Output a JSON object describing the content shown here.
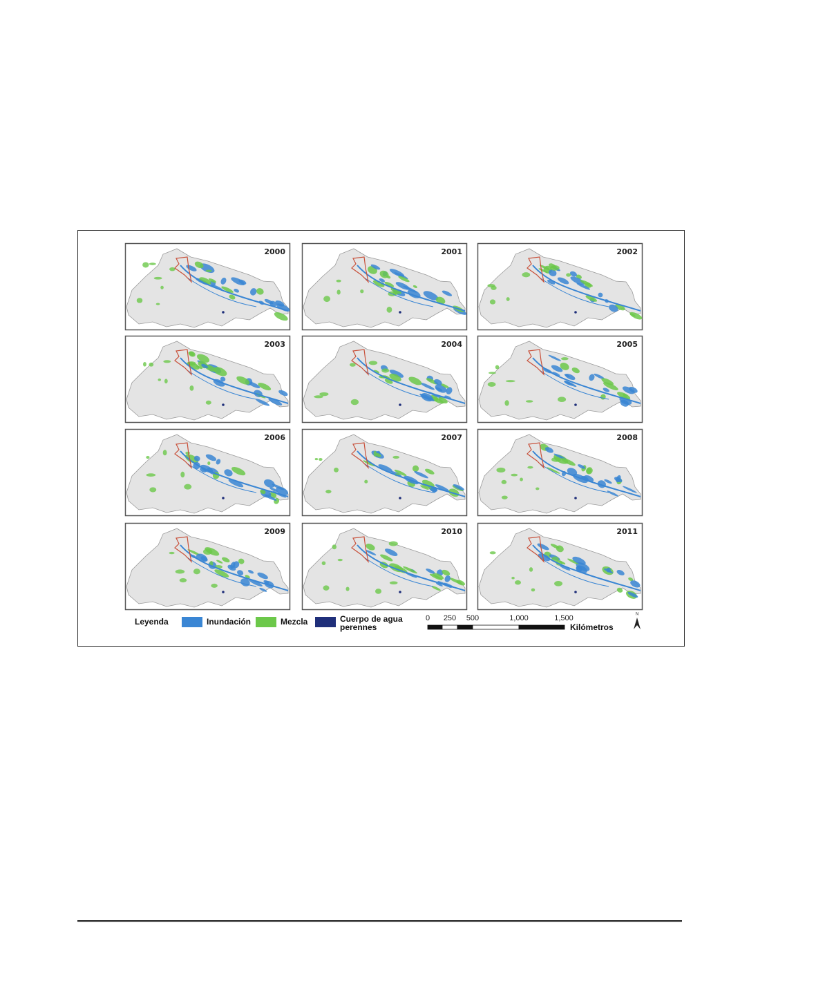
{
  "figure": {
    "panels": [
      {
        "year": "2000"
      },
      {
        "year": "2001"
      },
      {
        "year": "2002"
      },
      {
        "year": "2003"
      },
      {
        "year": "2004"
      },
      {
        "year": "2005"
      },
      {
        "year": "2006"
      },
      {
        "year": "2007"
      },
      {
        "year": "2008"
      },
      {
        "year": "2009"
      },
      {
        "year": "2010"
      },
      {
        "year": "2011"
      }
    ],
    "legend": {
      "title": "Leyenda",
      "items": [
        {
          "label": "Inundación",
          "color": "#3a86d4"
        },
        {
          "label": "Mezcla",
          "color": "#6cc84a"
        },
        {
          "label": "Cuerpo de agua",
          "label2": "perennes",
          "color": "#1f2f7a"
        }
      ]
    },
    "scale_bar": {
      "ticks": [
        "0",
        "250",
        "500",
        "1,000",
        "1,500"
      ],
      "unit": "Kilómetros"
    },
    "north": "N"
  }
}
